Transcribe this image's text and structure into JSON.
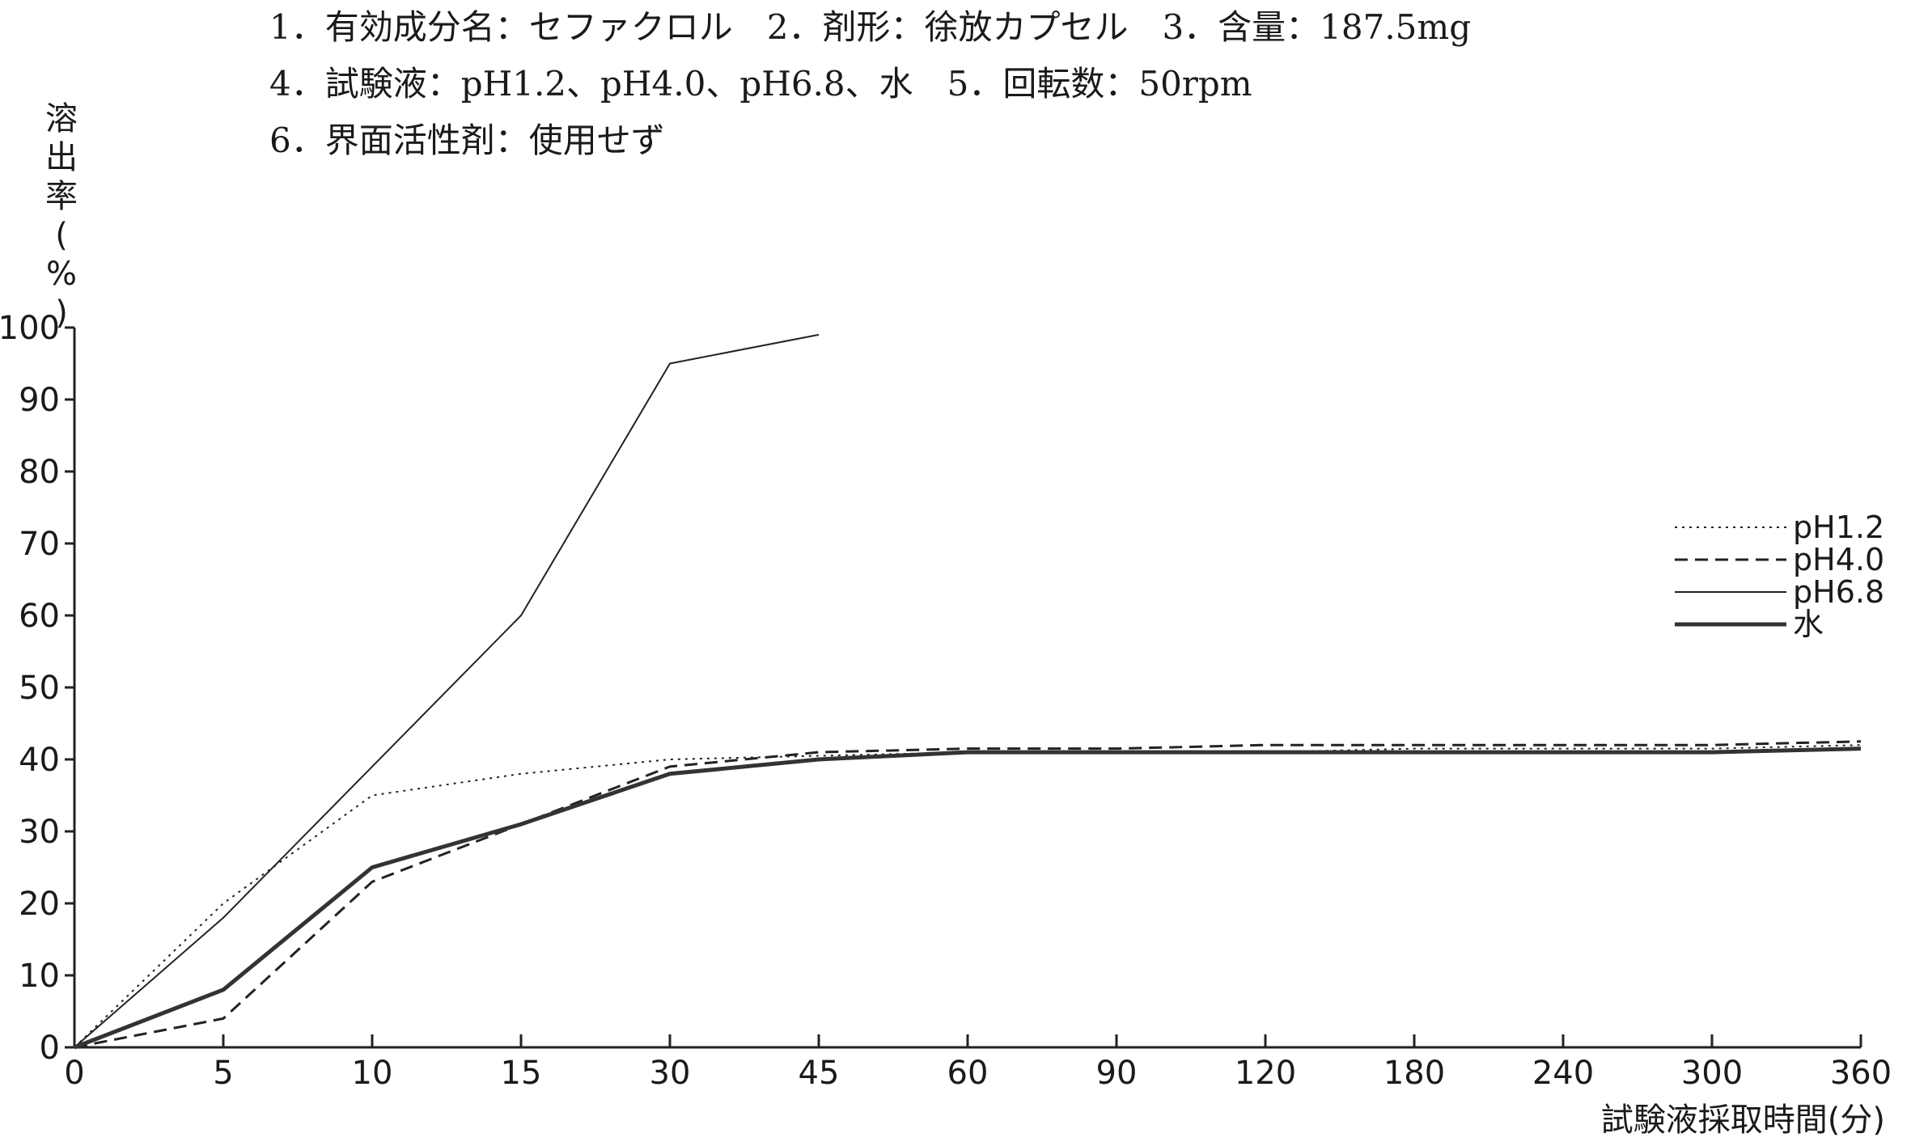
{
  "header": {
    "line1": "1．有効成分名：セファクロル　2．剤形：徐放カプセル　3．含量：187.5mg",
    "line2": "4．試験液：pH1.2、pH4.0、pH6.8、水　5．回転数：50rpm",
    "line3": "6．界面活性剤：使用せず"
  },
  "chart_data": {
    "type": "line",
    "title": "",
    "ylabel": "溶出率(%)",
    "xlabel": "試験液採取時間(分)",
    "categories": [
      "0",
      "5",
      "10",
      "15",
      "30",
      "45",
      "60",
      "90",
      "120",
      "180",
      "240",
      "300",
      "360"
    ],
    "yticks": [
      "0",
      "10",
      "20",
      "30",
      "40",
      "50",
      "60",
      "70",
      "80",
      "90",
      "100"
    ],
    "ylim": [
      0,
      100
    ],
    "grid": false,
    "legend_position": "right",
    "series": [
      {
        "name": "pH1.2",
        "style": "dotted",
        "values": [
          0,
          20,
          35,
          38,
          40,
          40.5,
          41,
          41,
          41,
          41.5,
          41.5,
          41.5,
          42
        ]
      },
      {
        "name": "pH4.0",
        "style": "dashed",
        "values": [
          0,
          4,
          23,
          31,
          39,
          41,
          41.5,
          41.5,
          42,
          42,
          42,
          42,
          42.5
        ]
      },
      {
        "name": "pH6.8",
        "style": "solid-thin",
        "values": [
          0,
          18,
          39,
          60,
          95,
          99,
          null,
          null,
          null,
          null,
          null,
          null,
          null
        ]
      },
      {
        "name": "水",
        "style": "solid-thick",
        "values": [
          0,
          8,
          25,
          31,
          38,
          40,
          41,
          41,
          41,
          41,
          41,
          41,
          41.5
        ]
      }
    ]
  }
}
